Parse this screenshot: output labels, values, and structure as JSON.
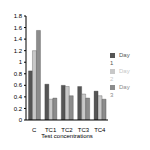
{
  "chart_data": {
    "type": "bar",
    "x_label": "Test concentrations",
    "categories": [
      "C",
      "TC1",
      "TC2",
      "TC3",
      "TC4"
    ],
    "series": [
      {
        "name": "Day 1",
        "color": "#555555",
        "values": [
          0.85,
          0.62,
          0.6,
          0.58,
          0.5
        ]
      },
      {
        "name": "Day 2",
        "color": "#c8c8c8",
        "values": [
          1.2,
          0.36,
          0.58,
          0.45,
          0.42
        ]
      },
      {
        "name": "Day 3",
        "color": "#8c8c8c",
        "values": [
          1.55,
          0.38,
          0.42,
          0.38,
          0.36
        ]
      }
    ],
    "ylim": [
      0,
      1.8
    ],
    "yticks": [
      0,
      0.2,
      0.4,
      0.6,
      0.8,
      1,
      1.2,
      1.4,
      1.6,
      1.8
    ],
    "grid": false,
    "legend": "right"
  }
}
